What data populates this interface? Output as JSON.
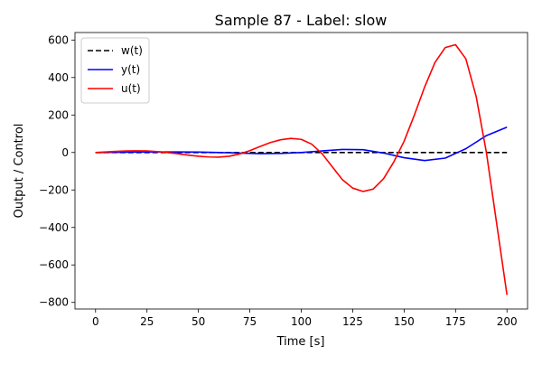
{
  "chart_data": {
    "type": "line",
    "title": "Sample 87 - Label: slow",
    "xlabel": "Time [s]",
    "ylabel": "Output / Control",
    "xlim": [
      -10,
      210
    ],
    "ylim": [
      -835,
      640
    ],
    "xticks": [
      0,
      25,
      50,
      75,
      100,
      125,
      150,
      175,
      200
    ],
    "yticks": [
      -800,
      -600,
      -400,
      -200,
      0,
      200,
      400,
      600
    ],
    "grid": false,
    "legend_position": "top-left",
    "series": [
      {
        "name": "w(t)",
        "color": "#000000",
        "dash": "dashed",
        "x": [
          0,
          200
        ],
        "y": [
          0,
          0
        ]
      },
      {
        "name": "y(t)",
        "color": "#0000ff",
        "dash": "solid",
        "x": [
          0,
          10,
          20,
          30,
          40,
          50,
          60,
          70,
          80,
          90,
          100,
          110,
          120,
          130,
          140,
          150,
          160,
          170,
          180,
          190,
          200
        ],
        "y": [
          0,
          1,
          2,
          3,
          3,
          2,
          0,
          -3,
          -6,
          -5,
          0,
          8,
          16,
          15,
          -3,
          -28,
          -43,
          -30,
          20,
          90,
          135
        ]
      },
      {
        "name": "u(t)",
        "color": "#ff0000",
        "dash": "solid",
        "x": [
          0,
          5,
          10,
          15,
          20,
          25,
          30,
          35,
          40,
          45,
          50,
          55,
          60,
          65,
          70,
          75,
          80,
          85,
          90,
          95,
          100,
          105,
          110,
          115,
          120,
          125,
          130,
          135,
          140,
          145,
          150,
          155,
          160,
          165,
          170,
          175,
          180,
          185,
          190,
          195,
          200
        ],
        "y": [
          0,
          3,
          6,
          8,
          9,
          8,
          5,
          0,
          -7,
          -14,
          -20,
          -24,
          -25,
          -20,
          -8,
          10,
          32,
          53,
          68,
          75,
          70,
          45,
          -5,
          -75,
          -145,
          -190,
          -208,
          -195,
          -140,
          -50,
          60,
          200,
          350,
          480,
          560,
          575,
          500,
          300,
          0,
          -380,
          -760
        ]
      }
    ]
  }
}
